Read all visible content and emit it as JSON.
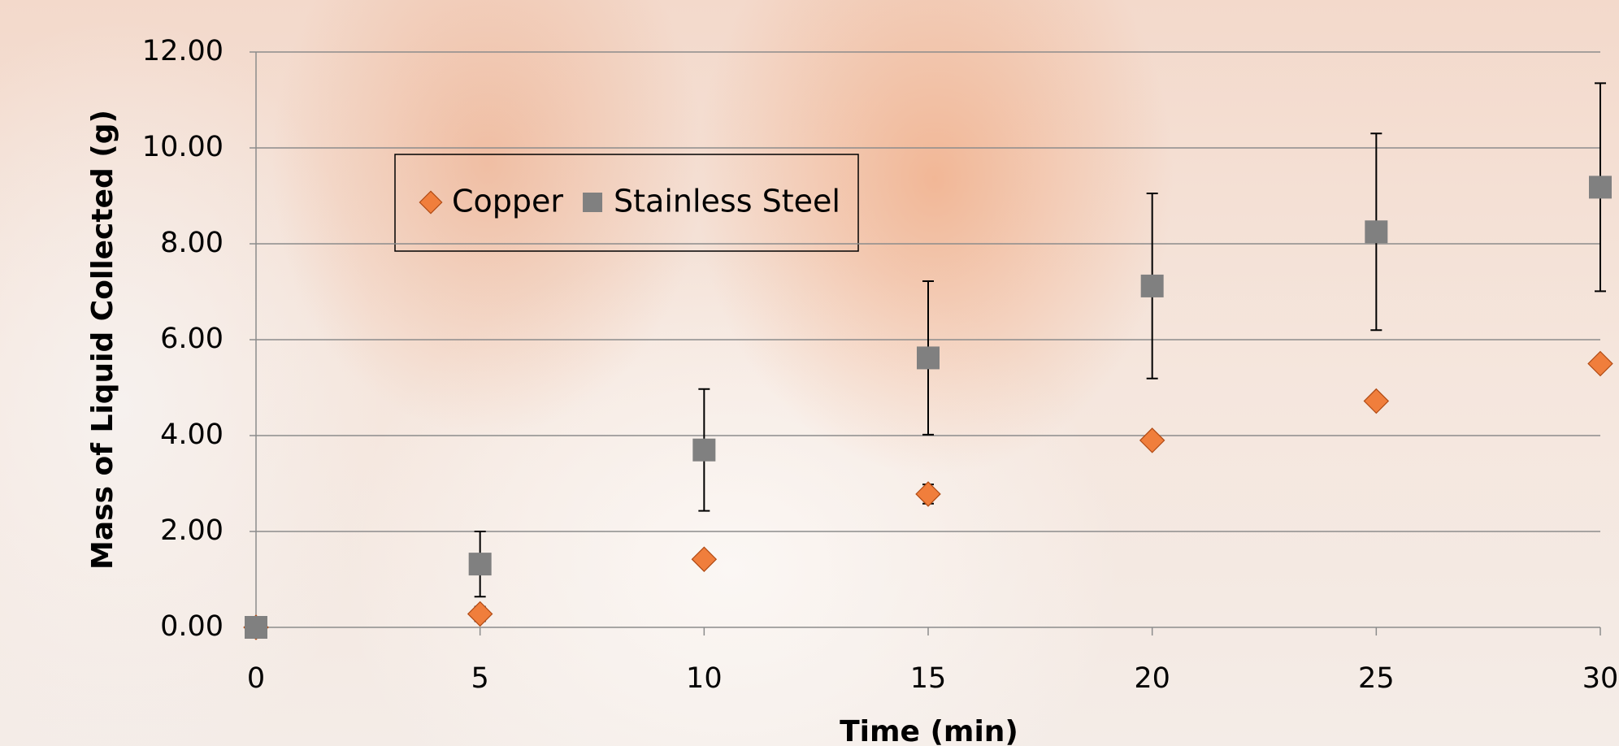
{
  "chart_data": {
    "type": "scatter",
    "x_label": "Time (min)",
    "y_label": "Mass of Liquid Collected (g)",
    "x": [
      0,
      5,
      10,
      15,
      20,
      25,
      30
    ],
    "series": [
      {
        "name": "Copper",
        "color": "#f07e3c",
        "marker": "diamond",
        "values": [
          0,
          0.28,
          1.42,
          2.78,
          3.9,
          4.72,
          5.5
        ],
        "errors": [
          0,
          0.15,
          0.1,
          0.2,
          0.1,
          0.12,
          0
        ]
      },
      {
        "name": "Stainless Steel",
        "color": "#808080",
        "marker": "square",
        "values": [
          0,
          1.32,
          3.7,
          5.62,
          7.12,
          8.25,
          9.18
        ],
        "errors": [
          0,
          0.68,
          1.27,
          1.6,
          1.93,
          2.05,
          2.17
        ]
      }
    ],
    "xlim": [
      0,
      30
    ],
    "xticks": [
      0,
      5,
      10,
      15,
      20,
      25,
      30
    ],
    "ylim": [
      0,
      12
    ],
    "yticks": [
      {
        "value": 0,
        "label": "0.00"
      },
      {
        "value": 2,
        "label": "2.00"
      },
      {
        "value": 4,
        "label": "4.00"
      },
      {
        "value": 6,
        "label": "6.00"
      },
      {
        "value": 8,
        "label": "8.00"
      },
      {
        "value": 10,
        "label": "10.00"
      },
      {
        "value": 12,
        "label": "12.00"
      }
    ],
    "grid": true
  }
}
